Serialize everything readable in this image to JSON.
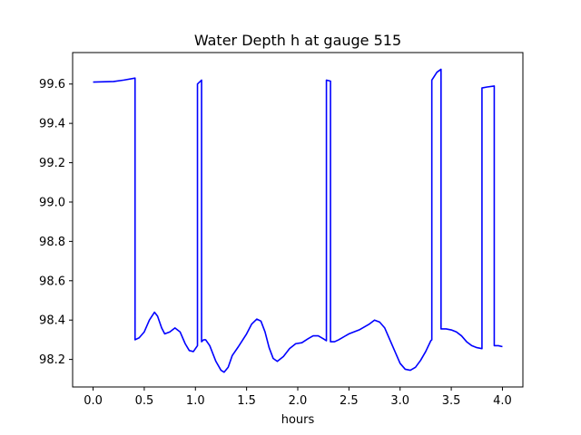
{
  "chart_data": {
    "type": "line",
    "title": "Water Depth h at gauge 515",
    "xlabel": "hours",
    "ylabel": "",
    "xlim": [
      -0.2,
      4.2
    ],
    "ylim": [
      98.06,
      99.76
    ],
    "xticks": [
      0.0,
      0.5,
      1.0,
      1.5,
      2.0,
      2.5,
      3.0,
      3.5,
      4.0
    ],
    "xtick_labels": [
      "0.0",
      "0.5",
      "1.0",
      "1.5",
      "2.0",
      "2.5",
      "3.0",
      "3.5",
      "4.0"
    ],
    "yticks": [
      98.2,
      98.4,
      98.6,
      98.8,
      99.0,
      99.2,
      99.4,
      99.6
    ],
    "ytick_labels": [
      "98.2",
      "98.4",
      "98.6",
      "98.8",
      "99.0",
      "99.2",
      "99.4",
      "99.6"
    ],
    "grid": false,
    "legend": "none",
    "series": [
      {
        "color": "#0000ff",
        "x": [
          0.0,
          0.2,
          0.3,
          0.41,
          0.41,
          0.45,
          0.5,
          0.55,
          0.6,
          0.63,
          0.67,
          0.7,
          0.75,
          0.8,
          0.85,
          0.9,
          0.94,
          0.98,
          1.02,
          1.02,
          1.04,
          1.06,
          1.06,
          1.08,
          1.1,
          1.14,
          1.2,
          1.25,
          1.28,
          1.32,
          1.36,
          1.42,
          1.5,
          1.55,
          1.6,
          1.64,
          1.68,
          1.72,
          1.76,
          1.8,
          1.86,
          1.92,
          1.98,
          2.04,
          2.1,
          2.15,
          2.2,
          2.25,
          2.28,
          2.28,
          2.32,
          2.32,
          2.36,
          2.4,
          2.5,
          2.6,
          2.7,
          2.75,
          2.8,
          2.85,
          2.9,
          2.95,
          3.0,
          3.05,
          3.1,
          3.15,
          3.2,
          3.25,
          3.3,
          3.31,
          3.31,
          3.36,
          3.4,
          3.4,
          3.45,
          3.5,
          3.55,
          3.6,
          3.65,
          3.7,
          3.75,
          3.8,
          3.8,
          3.85,
          3.92,
          3.92,
          3.96,
          4.0
        ],
        "y": [
          99.61,
          99.613,
          99.62,
          99.63,
          98.3,
          98.31,
          98.34,
          98.4,
          98.44,
          98.42,
          98.36,
          98.33,
          98.34,
          98.36,
          98.34,
          98.28,
          98.245,
          98.24,
          98.27,
          99.6,
          99.61,
          99.62,
          98.29,
          98.3,
          98.3,
          98.27,
          98.19,
          98.145,
          98.135,
          98.16,
          98.22,
          98.265,
          98.33,
          98.38,
          98.405,
          98.395,
          98.34,
          98.26,
          98.205,
          98.19,
          98.215,
          98.255,
          98.28,
          98.285,
          98.305,
          98.32,
          98.32,
          98.305,
          98.295,
          99.62,
          99.615,
          98.29,
          98.29,
          98.3,
          98.33,
          98.35,
          98.38,
          98.4,
          98.39,
          98.36,
          98.3,
          98.24,
          98.18,
          98.15,
          98.145,
          98.16,
          98.195,
          98.24,
          98.295,
          98.3,
          99.62,
          99.66,
          99.675,
          98.355,
          98.355,
          98.35,
          98.34,
          98.32,
          98.29,
          98.27,
          98.26,
          98.255,
          99.58,
          99.585,
          99.59,
          98.27,
          98.27,
          98.265
        ]
      }
    ]
  }
}
